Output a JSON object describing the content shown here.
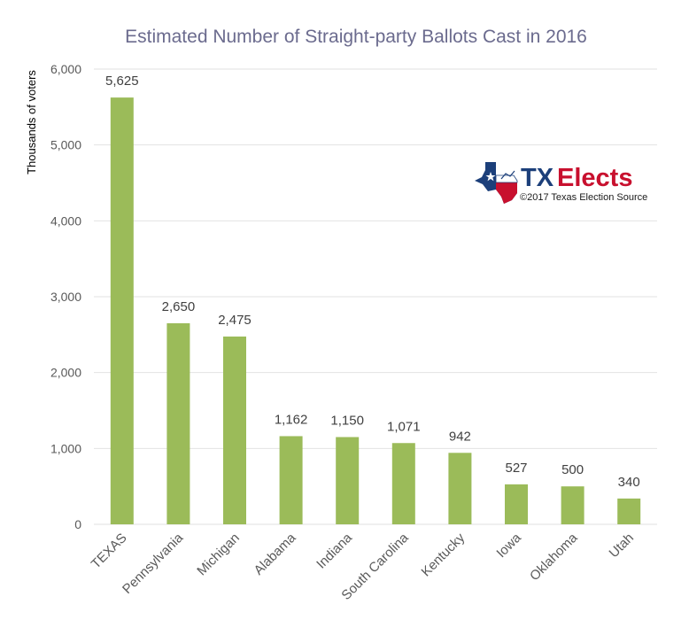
{
  "chart_data": {
    "type": "bar",
    "title": "Estimated Number of Straight-party Ballots Cast in 2016",
    "xlabel": "",
    "ylabel": "Thousands of voters",
    "ylim": [
      0,
      6000
    ],
    "yticks": [
      0,
      1000,
      2000,
      3000,
      4000,
      5000,
      6000
    ],
    "ytick_labels": [
      "0",
      "1,000",
      "2,000",
      "3,000",
      "4,000",
      "5,000",
      "6,000"
    ],
    "grid": true,
    "categories": [
      "TEXAS",
      "Pennsylvania",
      "Michigan",
      "Alabama",
      "Indiana",
      "South Carolina",
      "Kentucky",
      "Iowa",
      "Oklahoma",
      "Utah"
    ],
    "values": [
      5625,
      2650,
      2475,
      1162,
      1150,
      1071,
      942,
      527,
      500,
      340
    ],
    "value_labels": [
      "5,625",
      "2,650",
      "2,475",
      "1,162",
      "1,150",
      "1,071",
      "942",
      "527",
      "500",
      "340"
    ],
    "bar_color": "#9bbb59"
  },
  "logo": {
    "brand_tx": "TX",
    "brand_elects": "Elects",
    "subtitle": "©2017 Texas Election Source",
    "colors": {
      "navy": "#1c3f7a",
      "red": "#c8102e"
    }
  }
}
